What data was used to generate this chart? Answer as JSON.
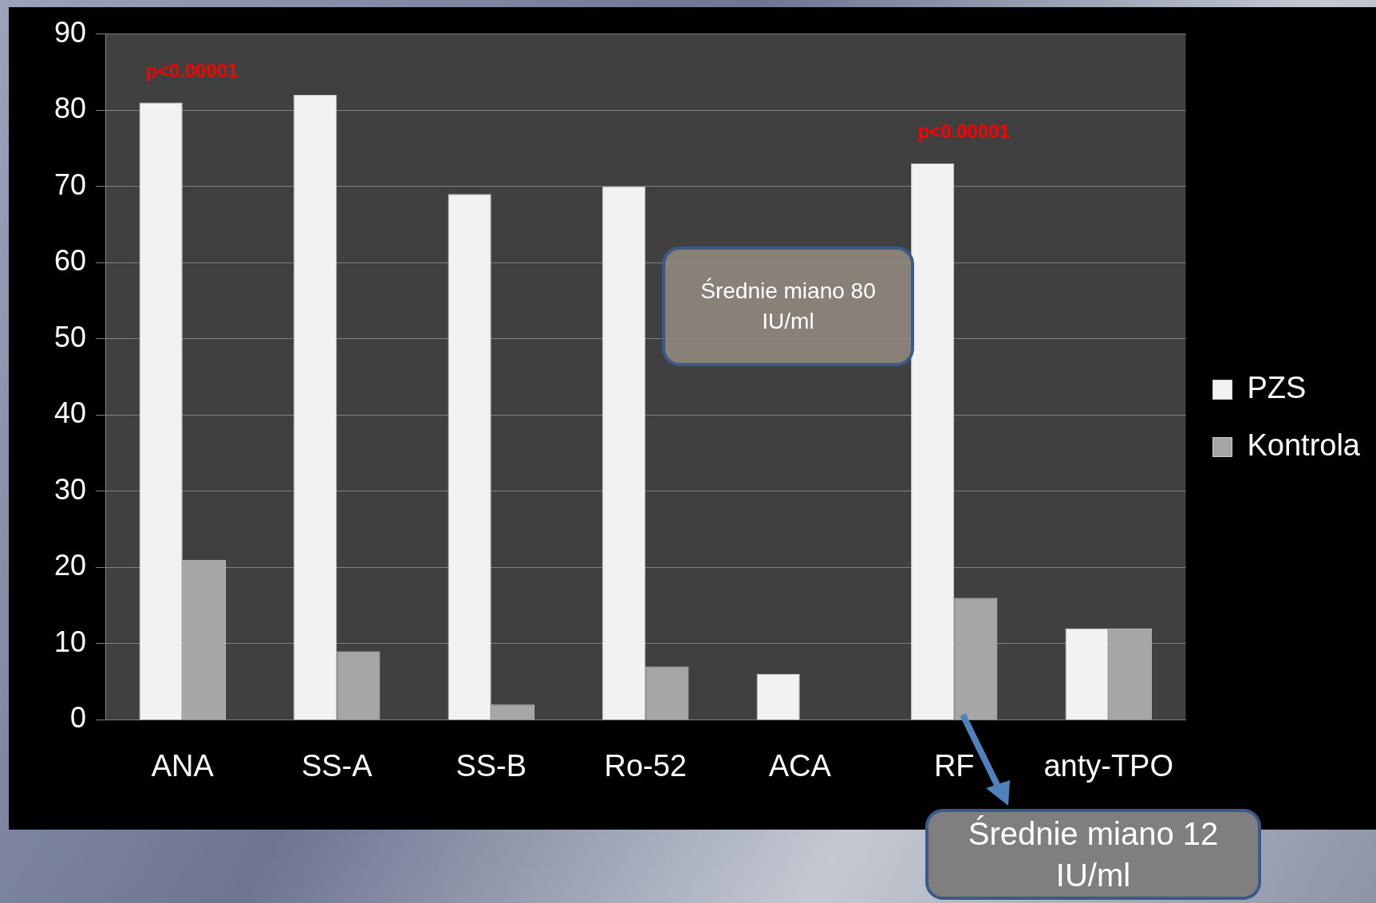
{
  "chart_data": {
    "type": "bar",
    "categories": [
      "ANA",
      "SS-A",
      "SS-B",
      "Ro-52",
      "ACA",
      "RF",
      "anty-TPO"
    ],
    "series": [
      {
        "name": "PZS",
        "color": "#f2f2f2",
        "values": [
          81,
          82,
          69,
          70,
          6,
          73,
          12
        ]
      },
      {
        "name": "Kontrola",
        "color": "#a6a6a6",
        "values": [
          21,
          9,
          2,
          7,
          0,
          16,
          12
        ]
      }
    ],
    "ylim": [
      0,
      90
    ],
    "yticks": [
      0,
      10,
      20,
      30,
      40,
      50,
      60,
      70,
      80,
      90
    ],
    "grid": "y",
    "legend": "right",
    "annotations": [
      "p<0.00001",
      "p<0.00001",
      "Średnie miano 80 IU/ml",
      "Średnie miano 12 IU/ml"
    ]
  }
}
